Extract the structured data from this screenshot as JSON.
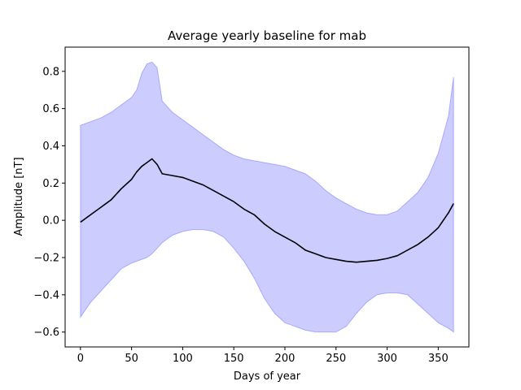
{
  "chart_data": {
    "type": "area",
    "title": "Average yearly baseline for mab",
    "xlabel": "Days of year",
    "ylabel": "Amplitude [nT]",
    "xlim": [
      -15,
      380
    ],
    "ylim": [
      -0.68,
      0.93
    ],
    "xticks": [
      0,
      50,
      100,
      150,
      200,
      250,
      300,
      350
    ],
    "yticks": [
      -0.6,
      -0.4,
      -0.2,
      0.0,
      0.2,
      0.4,
      0.6,
      0.8
    ],
    "ytick_labels": [
      "−0.6",
      "−0.4",
      "−0.2",
      "0.0",
      "0.2",
      "0.4",
      "0.6",
      "0.8"
    ],
    "grid": false,
    "band_color": "#0000ff",
    "band_opacity": 0.2,
    "line_color": "#000000",
    "x": [
      0,
      10,
      20,
      30,
      40,
      50,
      55,
      60,
      65,
      70,
      75,
      80,
      90,
      100,
      110,
      120,
      130,
      140,
      150,
      160,
      170,
      180,
      190,
      200,
      210,
      220,
      230,
      240,
      250,
      260,
      270,
      280,
      290,
      300,
      310,
      320,
      330,
      340,
      350,
      360,
      365
    ],
    "mean": [
      -0.01,
      0.03,
      0.07,
      0.11,
      0.17,
      0.22,
      0.26,
      0.29,
      0.31,
      0.33,
      0.3,
      0.25,
      0.24,
      0.23,
      0.21,
      0.19,
      0.16,
      0.13,
      0.1,
      0.06,
      0.03,
      -0.02,
      -0.06,
      -0.09,
      -0.12,
      -0.16,
      -0.18,
      -0.2,
      -0.21,
      -0.22,
      -0.225,
      -0.22,
      -0.215,
      -0.205,
      -0.19,
      -0.16,
      -0.13,
      -0.09,
      -0.04,
      0.04,
      0.09
    ],
    "upper": [
      0.51,
      0.53,
      0.55,
      0.58,
      0.62,
      0.66,
      0.7,
      0.79,
      0.84,
      0.85,
      0.82,
      0.64,
      0.58,
      0.54,
      0.5,
      0.46,
      0.42,
      0.38,
      0.35,
      0.33,
      0.32,
      0.31,
      0.3,
      0.29,
      0.27,
      0.25,
      0.21,
      0.16,
      0.12,
      0.09,
      0.06,
      0.04,
      0.03,
      0.03,
      0.05,
      0.1,
      0.15,
      0.23,
      0.36,
      0.56,
      0.77
    ],
    "lower": [
      -0.52,
      -0.44,
      -0.38,
      -0.32,
      -0.26,
      -0.23,
      -0.22,
      -0.21,
      -0.2,
      -0.18,
      -0.15,
      -0.12,
      -0.08,
      -0.06,
      -0.05,
      -0.05,
      -0.06,
      -0.09,
      -0.15,
      -0.22,
      -0.31,
      -0.42,
      -0.5,
      -0.55,
      -0.57,
      -0.59,
      -0.6,
      -0.6,
      -0.6,
      -0.57,
      -0.5,
      -0.44,
      -0.4,
      -0.39,
      -0.39,
      -0.4,
      -0.45,
      -0.5,
      -0.55,
      -0.58,
      -0.6
    ]
  }
}
